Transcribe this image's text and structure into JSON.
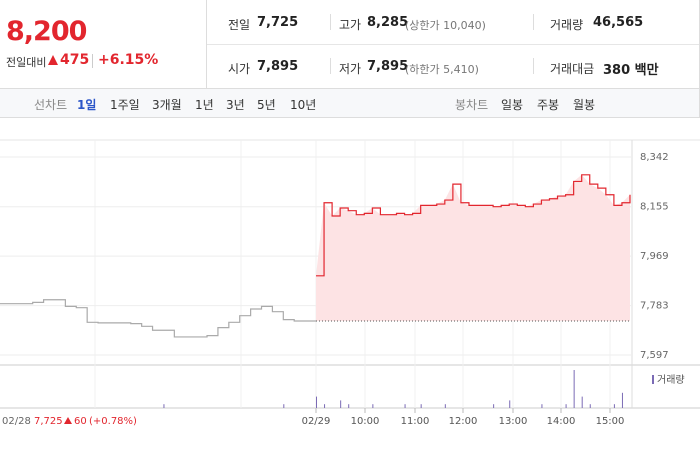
{
  "quote": {
    "price": "8,200",
    "change_label": "전일대비",
    "change": "475",
    "change_pct": "+6.15%",
    "stats": [
      [
        {
          "label": "전일",
          "value": "7,725"
        },
        {
          "label": "고가",
          "value": "8,285",
          "note": "(상한가 10,040)"
        },
        {
          "label": "거래량",
          "value": "46,565"
        }
      ],
      [
        {
          "label": "시가",
          "value": "7,895"
        },
        {
          "label": "저가",
          "value": "7,895",
          "note": "(하한가 5,410)"
        },
        {
          "label": "거래대금",
          "value": "380 백만"
        }
      ]
    ]
  },
  "tabs": {
    "line_label": "선차트",
    "line_periods": [
      "1일",
      "1주일",
      "3개월",
      "1년",
      "3년",
      "5년",
      "10년"
    ],
    "candle_label": "봉차트",
    "candle_periods": [
      "일봉",
      "주봉",
      "월봉"
    ]
  },
  "chart_data": {
    "type": "line",
    "ylim": [
      7597,
      8342
    ],
    "yticks": [
      {
        "value": 8342,
        "label": "8,342"
      },
      {
        "value": 8155,
        "label": "8,155"
      },
      {
        "value": 7969,
        "label": "7,969"
      },
      {
        "value": 7783,
        "label": "7,783"
      },
      {
        "value": 7597,
        "label": "7,597"
      }
    ],
    "xticks": [
      "02/29",
      "10:00",
      "11:00",
      "12:00",
      "13:00",
      "14:00",
      "15:00"
    ],
    "prev_close": 7725,
    "series": [
      {
        "name": "02/28",
        "color": "#aaaaaa",
        "values": [
          7790,
          7790,
          7790,
          7795,
          7805,
          7805,
          7780,
          7775,
          7720,
          7718,
          7718,
          7718,
          7715,
          7705,
          7690,
          7690,
          7665,
          7665,
          7665,
          7670,
          7700,
          7720,
          7745,
          7770,
          7780,
          7760,
          7730,
          7725,
          7725,
          7725
        ]
      },
      {
        "name": "02/29",
        "color": "#e2262e",
        "values": [
          7895,
          8170,
          8120,
          8150,
          8140,
          8125,
          8130,
          8150,
          8125,
          8125,
          8130,
          8125,
          8130,
          8160,
          8160,
          8165,
          8180,
          8240,
          8170,
          8160,
          8160,
          8160,
          8155,
          8160,
          8165,
          8160,
          8155,
          8165,
          8180,
          8185,
          8195,
          8200,
          8250,
          8275,
          8240,
          8225,
          8200,
          8160,
          8170,
          8200
        ]
      }
    ],
    "volume": {
      "name": "거래량",
      "color": "#7b6bb5",
      "prev": [
        0,
        0,
        0,
        0,
        0,
        0,
        0,
        0,
        0,
        0,
        0,
        0,
        0,
        0,
        0,
        1,
        0,
        0,
        0,
        0,
        0,
        0,
        0,
        0,
        0,
        0,
        1,
        0,
        0,
        0
      ],
      "today": [
        3,
        1,
        0,
        2,
        1,
        0,
        0,
        1,
        0,
        0,
        0,
        1,
        0,
        1,
        0,
        0,
        1,
        0,
        0,
        0,
        0,
        0,
        1,
        0,
        2,
        0,
        0,
        0,
        1,
        0,
        0,
        1,
        10,
        3,
        1,
        0,
        0,
        1,
        4,
        0
      ]
    },
    "footnote": {
      "date": "02/28",
      "close": "7,725",
      "change": "60",
      "change_pct": "(+0.78%)"
    }
  }
}
